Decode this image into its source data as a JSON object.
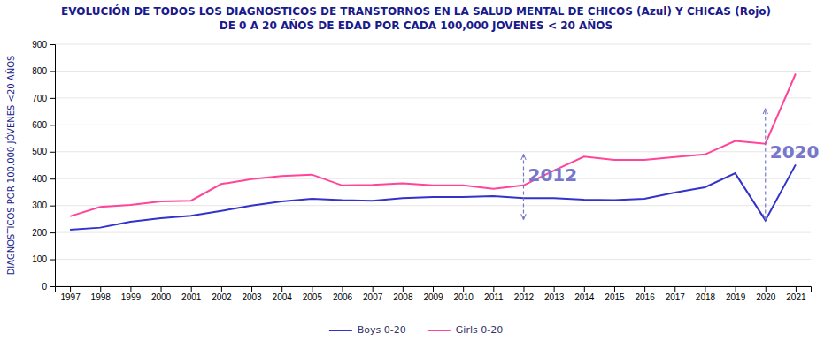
{
  "chart_data": {
    "type": "line",
    "title": "EVOLUCIÓN DE TODOS LOS DIAGNOSTICOS DE TRANSTORNOS EN LA SALUD MENTAL DE CHICOS (Azul) Y CHICAS (Rojo)",
    "subtitle": "DE 0 A 20 AÑOS DE EDAD POR CADA 100,000 JOVENES < 20 AÑOS",
    "y_label": "DIAGNOSTICOS POR 100.000 JÓVENES <20 AÑOS",
    "x": [
      1997,
      1998,
      1999,
      2000,
      2001,
      2002,
      2003,
      2004,
      2005,
      2006,
      2007,
      2008,
      2009,
      2010,
      2011,
      2012,
      2013,
      2014,
      2015,
      2016,
      2017,
      2018,
      2019,
      2020,
      2021
    ],
    "series": [
      {
        "name": "Boys 0-20",
        "color": "#3333cc",
        "values": [
          210,
          218,
          240,
          253,
          262,
          280,
          300,
          315,
          325,
          320,
          318,
          328,
          332,
          332,
          335,
          328,
          328,
          322,
          320,
          325,
          348,
          368,
          420,
          245,
          452
        ]
      },
      {
        "name": "Girls 0-20",
        "color": "#ff4499",
        "values": [
          260,
          295,
          302,
          315,
          318,
          380,
          398,
          410,
          415,
          375,
          377,
          383,
          375,
          375,
          362,
          375,
          430,
          482,
          470,
          470,
          480,
          490,
          540,
          530,
          790
        ]
      }
    ],
    "xlim": [
      1996.5,
      2021.5
    ],
    "xticks": [
      1997,
      1998,
      1999,
      2000,
      2001,
      2002,
      2003,
      2004,
      2005,
      2006,
      2007,
      2008,
      2009,
      2010,
      2011,
      2012,
      2013,
      2014,
      2015,
      2016,
      2017,
      2018,
      2019,
      2020,
      2021
    ],
    "ylim": [
      0,
      900
    ],
    "yticks": [
      0,
      100,
      200,
      300,
      400,
      500,
      600,
      700,
      800,
      900
    ],
    "grid": true,
    "legend": "bottom",
    "annotations": [
      {
        "text": "2012",
        "x": 2012,
        "y_top": 490,
        "y_bottom": 248,
        "color": "#7777cc"
      },
      {
        "text": "2020",
        "x": 2020,
        "y_top": 660,
        "y_bottom": 248,
        "color": "#7777cc"
      }
    ]
  }
}
